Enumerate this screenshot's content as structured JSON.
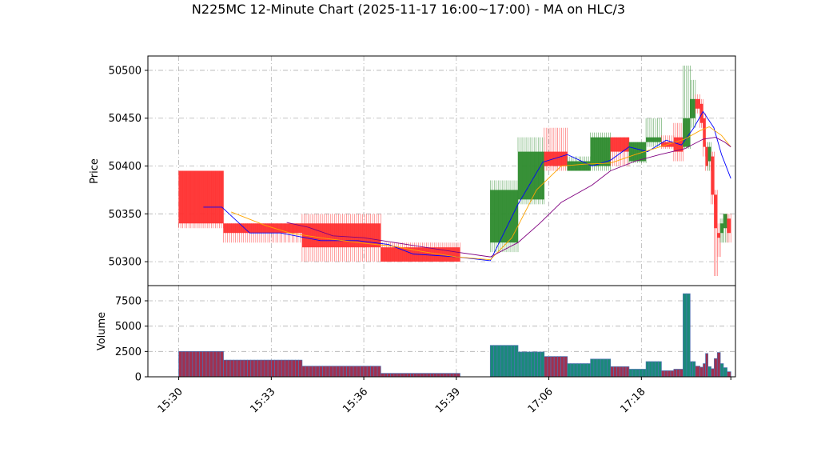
{
  "chart_data": {
    "type": "candlestick",
    "title": "N225MC 12-Minute Chart (2025-11-17 16:00~17:00) - MA on HLC/3",
    "price_panel": {
      "ylabel": "Price",
      "ylim": [
        50275,
        50515
      ],
      "yticks": [
        50300,
        50350,
        50400,
        50450,
        50500
      ],
      "grid": true
    },
    "volume_panel": {
      "ylabel": "Volume",
      "ylim": [
        0,
        9000
      ],
      "yticks": [
        0,
        2500,
        5000,
        7500
      ],
      "ytick_labels": [
        "0",
        "2500",
        "5000",
        "7500"
      ],
      "grid": true
    },
    "x_ticks": [
      {
        "label": "15:30",
        "x": 0
      },
      {
        "label": "15:33",
        "x": 3
      },
      {
        "label": "15:36",
        "x": 6
      },
      {
        "label": "15:39",
        "x": 9
      },
      {
        "label": "17:06",
        "x": 12
      },
      {
        "label": "17:18",
        "x": 15
      }
    ],
    "xlim": [
      -1,
      18.05
    ],
    "candles": [
      {
        "x0": 0.0,
        "x1": 1.45,
        "open": 50395,
        "high": 50395,
        "low": 50335,
        "close": 50340,
        "volume": 2500
      },
      {
        "x0": 1.45,
        "x1": 4.0,
        "open": 50340,
        "high": 50340,
        "low": 50320,
        "close": 50330,
        "volume": 1650
      },
      {
        "x0": 4.0,
        "x1": 6.55,
        "open": 50340,
        "high": 50350,
        "low": 50300,
        "close": 50315,
        "volume": 1050
      },
      {
        "x0": 6.55,
        "x1": 9.12,
        "open": 50315,
        "high": 50320,
        "low": 50300,
        "close": 50300,
        "volume": 340
      },
      {
        "x0": 10.1,
        "x1": 11.0,
        "open": 50320,
        "high": 50385,
        "low": 50310,
        "close": 50375,
        "volume": 3100
      },
      {
        "x0": 11.0,
        "x1": 11.85,
        "open": 50365,
        "high": 50430,
        "low": 50360,
        "close": 50415,
        "volume": 2450
      },
      {
        "x0": 11.85,
        "x1": 12.6,
        "open": 50415,
        "high": 50440,
        "low": 50395,
        "close": 50400,
        "volume": 2000
      },
      {
        "x0": 12.6,
        "x1": 13.35,
        "open": 50395,
        "high": 50410,
        "low": 50395,
        "close": 50405,
        "volume": 1300
      },
      {
        "x0": 13.35,
        "x1": 14.0,
        "open": 50400,
        "high": 50435,
        "low": 50395,
        "close": 50430,
        "volume": 1750
      },
      {
        "x0": 14.0,
        "x1": 14.6,
        "open": 50430,
        "high": 50430,
        "low": 50400,
        "close": 50415,
        "volume": 1000
      },
      {
        "x0": 14.6,
        "x1": 15.15,
        "open": 50405,
        "high": 50425,
        "low": 50403,
        "close": 50425,
        "volume": 750
      },
      {
        "x0": 15.15,
        "x1": 15.65,
        "open": 50425,
        "high": 50450,
        "low": 50420,
        "close": 50430,
        "volume": 1500
      },
      {
        "x0": 15.65,
        "x1": 16.05,
        "open": 50425,
        "high": 50432,
        "low": 50418,
        "close": 50420,
        "volume": 600
      },
      {
        "x0": 16.05,
        "x1": 16.35,
        "open": 50430,
        "high": 50445,
        "low": 50405,
        "close": 50415,
        "volume": 750
      },
      {
        "x0": 16.35,
        "x1": 16.58,
        "open": 50420,
        "high": 50505,
        "low": 50418,
        "close": 50450,
        "volume": 8200
      },
      {
        "x0": 16.58,
        "x1": 16.75,
        "open": 50450,
        "high": 50490,
        "low": 50440,
        "close": 50470,
        "volume": 1500
      },
      {
        "x0": 16.75,
        "x1": 16.9,
        "open": 50470,
        "high": 50475,
        "low": 50455,
        "close": 50460,
        "volume": 1050
      },
      {
        "x0": 16.9,
        "x1": 17.0,
        "open": 50465,
        "high": 50470,
        "low": 50440,
        "close": 50445,
        "volume": 950
      },
      {
        "x0": 17.0,
        "x1": 17.08,
        "open": 50450,
        "high": 50455,
        "low": 50410,
        "close": 50420,
        "volume": 1300
      },
      {
        "x0": 17.08,
        "x1": 17.16,
        "open": 50420,
        "high": 50425,
        "low": 50395,
        "close": 50400,
        "volume": 2300
      },
      {
        "x0": 17.16,
        "x1": 17.26,
        "open": 50405,
        "high": 50425,
        "low": 50395,
        "close": 50420,
        "volume": 1000
      },
      {
        "x0": 17.26,
        "x1": 17.36,
        "open": 50410,
        "high": 50415,
        "low": 50360,
        "close": 50370,
        "volume": 800
      },
      {
        "x0": 17.36,
        "x1": 17.46,
        "open": 50370,
        "high": 50375,
        "low": 50285,
        "close": 50335,
        "volume": 1800
      },
      {
        "x0": 17.46,
        "x1": 17.56,
        "open": 50330,
        "high": 50340,
        "low": 50305,
        "close": 50325,
        "volume": 2400
      },
      {
        "x0": 17.56,
        "x1": 17.66,
        "open": 50330,
        "high": 50345,
        "low": 50320,
        "close": 50340,
        "volume": 1300
      },
      {
        "x0": 17.66,
        "x1": 17.78,
        "open": 50335,
        "high": 50350,
        "low": 50320,
        "close": 50350,
        "volume": 900
      },
      {
        "x0": 17.78,
        "x1": 17.9,
        "open": 50345,
        "high": 50350,
        "low": 50320,
        "close": 50330,
        "volume": 500
      }
    ],
    "moving_averages": [
      {
        "color": "#0000ff",
        "points": [
          [
            0.8,
            50357
          ],
          [
            1.4,
            50357
          ],
          [
            2.3,
            50330
          ],
          [
            3.3,
            50330
          ],
          [
            4.6,
            50322
          ],
          [
            5.8,
            50322
          ],
          [
            6.8,
            50318
          ],
          [
            7.6,
            50308
          ],
          [
            9.0,
            50305
          ],
          [
            10.1,
            50301
          ],
          [
            11.0,
            50360
          ],
          [
            11.8,
            50404
          ],
          [
            12.6,
            50412
          ],
          [
            13.4,
            50400
          ],
          [
            14.0,
            50406
          ],
          [
            14.6,
            50420
          ],
          [
            15.2,
            50415
          ],
          [
            15.8,
            50427
          ],
          [
            16.3,
            50422
          ],
          [
            16.7,
            50440
          ],
          [
            17.0,
            50457
          ],
          [
            17.35,
            50440
          ],
          [
            17.6,
            50412
          ],
          [
            17.9,
            50387
          ]
        ]
      },
      {
        "color": "#ffa500",
        "points": [
          [
            1.7,
            50352
          ],
          [
            2.8,
            50338
          ],
          [
            3.6,
            50330
          ],
          [
            4.6,
            50325
          ],
          [
            5.8,
            50320
          ],
          [
            7.0,
            50316
          ],
          [
            8.0,
            50310
          ],
          [
            9.0,
            50305
          ],
          [
            10.1,
            50302
          ],
          [
            10.8,
            50325
          ],
          [
            11.6,
            50375
          ],
          [
            12.4,
            50400
          ],
          [
            13.2,
            50402
          ],
          [
            14.0,
            50403
          ],
          [
            14.8,
            50412
          ],
          [
            15.6,
            50420
          ],
          [
            16.4,
            50428
          ],
          [
            16.9,
            50437
          ],
          [
            17.2,
            50441
          ],
          [
            17.6,
            50432
          ],
          [
            17.9,
            50420
          ]
        ]
      },
      {
        "color": "#800080",
        "points": [
          [
            3.5,
            50341
          ],
          [
            4.2,
            50336
          ],
          [
            5.0,
            50327
          ],
          [
            6.0,
            50325
          ],
          [
            7.0,
            50320
          ],
          [
            8.0,
            50315
          ],
          [
            9.0,
            50310
          ],
          [
            10.1,
            50305
          ],
          [
            11.0,
            50320
          ],
          [
            11.7,
            50340
          ],
          [
            12.4,
            50362
          ],
          [
            13.4,
            50380
          ],
          [
            14.0,
            50395
          ],
          [
            14.8,
            50405
          ],
          [
            15.6,
            50412
          ],
          [
            16.4,
            50418
          ],
          [
            17.0,
            50428
          ],
          [
            17.4,
            50430
          ],
          [
            17.7,
            50425
          ],
          [
            17.9,
            50420
          ]
        ]
      }
    ],
    "colors": {
      "up": "#2e8b2e",
      "down": "#ff3030",
      "vol_up": "#1a8a7a",
      "vol_down": "#a03050",
      "vol_bar_edge": "#4c72b0",
      "grid": "#b0b0b0"
    }
  }
}
